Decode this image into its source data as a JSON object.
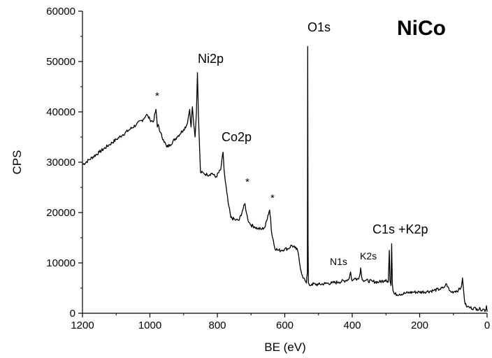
{
  "chart_data": {
    "type": "line",
    "title": "NiCo",
    "xlabel": "BE (eV)",
    "ylabel": "CPS",
    "xlim": [
      1200,
      0
    ],
    "ylim": [
      0,
      60000
    ],
    "x_reversed": true,
    "grid": false,
    "x_ticks": [
      1200,
      1000,
      800,
      600,
      400,
      200,
      0
    ],
    "y_ticks": [
      0,
      10000,
      20000,
      30000,
      40000,
      50000,
      60000
    ],
    "x_tick_labels": [
      "1200",
      "1000",
      "800",
      "600",
      "400",
      "200",
      "0"
    ],
    "y_tick_labels": [
      "0",
      "10000",
      "20000",
      "30000",
      "40000",
      "50000",
      "60000"
    ],
    "series": [
      {
        "x": [
          1200,
          1180,
          1150,
          1120,
          1100,
          1080,
          1060,
          1040,
          1020,
          1010,
          1000,
          990,
          982,
          978,
          975,
          970,
          960,
          950,
          940,
          920,
          900,
          890,
          882,
          878,
          874,
          870,
          866,
          862,
          859,
          856,
          853,
          850,
          840,
          830,
          815,
          805,
          790,
          783,
          780,
          777,
          772,
          768,
          760,
          745,
          735,
          725,
          718,
          714,
          710,
          705,
          700,
          690,
          680,
          668,
          658,
          650,
          645,
          642,
          640,
          637,
          634,
          630,
          620,
          610,
          600,
          590,
          580,
          570,
          562,
          558,
          555,
          552,
          548,
          544,
          540,
          536,
          533,
          532,
          531,
          530,
          528,
          525,
          520,
          500,
          480,
          460,
          440,
          420,
          410,
          405,
          402,
          399,
          395,
          390,
          385,
          381,
          378,
          375,
          372,
          368,
          360,
          340,
          320,
          305,
          300,
          296,
          293,
          290,
          288,
          285,
          283,
          281,
          279,
          275,
          260,
          240,
          220,
          200,
          180,
          160,
          140,
          130,
          124,
          120,
          116,
          112,
          105,
          95,
          85,
          78,
          75,
          73,
          71,
          69,
          67,
          65,
          62,
          58,
          50,
          40,
          30,
          20,
          10,
          5,
          2,
          0
        ],
        "y": [
          29500,
          30500,
          32000,
          33500,
          34500,
          35500,
          36500,
          37500,
          38500,
          39500,
          38500,
          38000,
          40500,
          37000,
          37500,
          36000,
          34500,
          33000,
          33500,
          35000,
          36500,
          37500,
          40500,
          37000,
          41000,
          37500,
          35000,
          40000,
          47800,
          39000,
          33500,
          28000,
          27800,
          27500,
          27800,
          27000,
          28500,
          32000,
          28500,
          26500,
          24000,
          22000,
          19000,
          18500,
          18500,
          20500,
          21800,
          20000,
          18800,
          18000,
          17500,
          17200,
          16800,
          16700,
          17200,
          19500,
          20500,
          18800,
          16500,
          15200,
          14500,
          13000,
          12500,
          12500,
          12800,
          12800,
          13500,
          13000,
          12500,
          11000,
          9500,
          8500,
          7500,
          7000,
          6500,
          6000,
          8000,
          53000,
          15000,
          6000,
          5800,
          5500,
          5800,
          5700,
          5900,
          6000,
          6200,
          6500,
          6800,
          8200,
          6800,
          6500,
          6700,
          7000,
          6900,
          6800,
          7500,
          9000,
          7200,
          6600,
          6500,
          6300,
          6200,
          6500,
          6700,
          6400,
          6200,
          12500,
          6500,
          5500,
          13800,
          5800,
          4500,
          3800,
          3800,
          4000,
          4200,
          4200,
          4300,
          4500,
          4800,
          5000,
          5500,
          5800,
          5200,
          4500,
          4200,
          4400,
          4600,
          5000,
          5800,
          7000,
          5500,
          4000,
          2500,
          1800,
          1500,
          1300,
          1100,
          1000,
          900,
          800,
          800,
          500,
          1500,
          300
        ]
      }
    ],
    "annotations": {
      "O1s": "O1s",
      "Ni2p": "Ni2p",
      "Co2p": "Co2p",
      "star1": "*",
      "star2": "*",
      "star3": "*",
      "N1s": "N1s",
      "K2s": "K2s",
      "C1s_K2p": "C1s +K2p"
    }
  }
}
